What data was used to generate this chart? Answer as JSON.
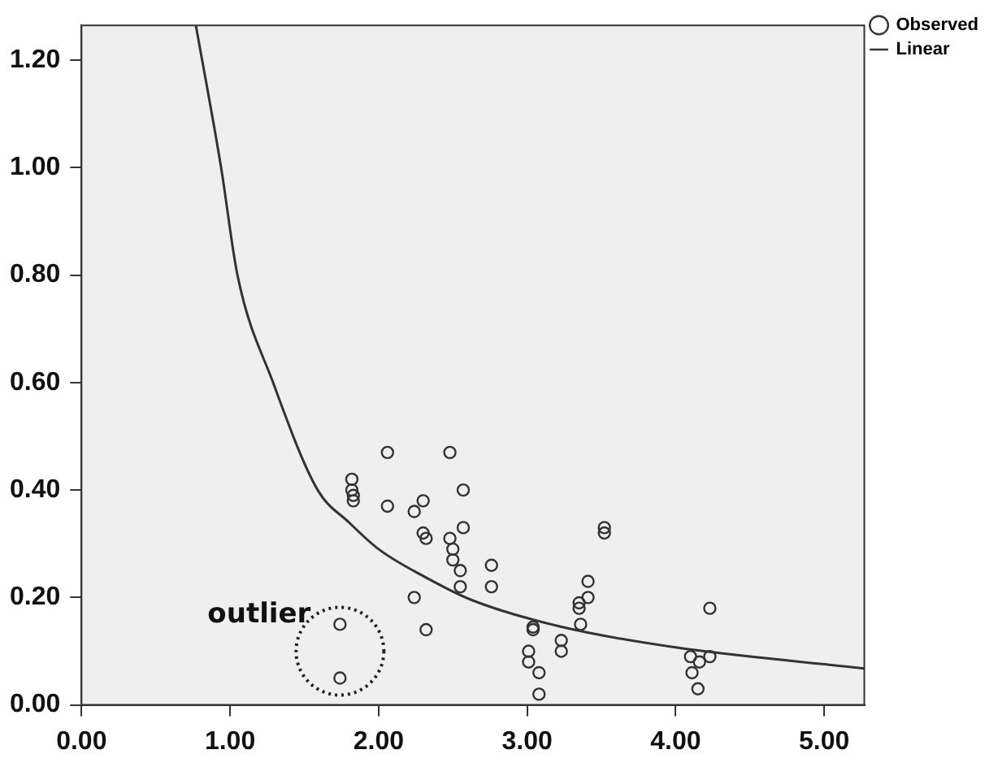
{
  "chart_data": {
    "type": "scatter",
    "xlim": [
      0,
      5.27
    ],
    "xticks": [
      {
        "value": 0,
        "label": "0.00"
      },
      {
        "value": 1,
        "label": "1.00"
      },
      {
        "value": 2,
        "label": "2.00"
      },
      {
        "value": 3,
        "label": "3.00"
      },
      {
        "value": 4,
        "label": "4.00"
      },
      {
        "value": 5,
        "label": "5.00"
      }
    ],
    "ylim": [
      0,
      1.265
    ],
    "yticks": [
      {
        "value": 0,
        "label": "0.00"
      },
      {
        "value": 0.2,
        "label": "0.20"
      },
      {
        "value": 0.4,
        "label": "0.40"
      },
      {
        "value": 0.6,
        "label": "0.60"
      },
      {
        "value": 0.8,
        "label": "0.80"
      },
      {
        "value": 1,
        "label": "1.00"
      },
      {
        "value": 1.2,
        "label": "1.20"
      }
    ],
    "grid": false,
    "legend": "top right",
    "annotations": [
      "outlier"
    ],
    "series": [
      {
        "name": "Observed",
        "marker": "circle",
        "color": "#333333",
        "x": [
          2.06,
          2.48,
          1.82,
          1.82,
          1.83,
          1.83,
          2.57,
          2.06,
          2.3,
          2.24,
          2.3,
          2.32,
          2.57,
          2.48,
          2.5,
          2.5,
          2.55,
          2.55,
          2.76,
          2.76,
          2.24,
          2.32,
          1.74,
          1.74,
          3.04,
          3.04,
          3.01,
          3.01,
          3.08,
          3.08,
          3.23,
          3.23,
          3.35,
          3.35,
          3.36,
          3.41,
          3.41,
          3.52,
          3.52,
          4.23,
          4.1,
          4.16,
          4.23,
          4.11,
          4.15
        ],
        "values": [
          0.47,
          0.47,
          0.42,
          0.4,
          0.39,
          0.38,
          0.4,
          0.37,
          0.38,
          0.36,
          0.32,
          0.31,
          0.33,
          0.31,
          0.29,
          0.27,
          0.25,
          0.22,
          0.26,
          0.22,
          0.2,
          0.14,
          0.15,
          0.05,
          0.14,
          0.145,
          0.1,
          0.08,
          0.06,
          0.02,
          0.12,
          0.1,
          0.19,
          0.18,
          0.15,
          0.23,
          0.2,
          0.33,
          0.32,
          0.18,
          0.09,
          0.08,
          0.09,
          0.06,
          0.03
        ]
      },
      {
        "name": "Linear",
        "type": "line",
        "marker": "none",
        "line_style": "solid",
        "color": "#333333",
        "x": [
          0.77,
          0.94,
          1.05,
          1.29,
          1.59,
          1.8,
          2.0,
          2.3,
          2.62,
          3.22,
          4.0,
          5.27
        ],
        "values": [
          1.265,
          1.0,
          0.8,
          0.6,
          0.4,
          0.34,
          0.29,
          0.24,
          0.196,
          0.146,
          0.107,
          0.068
        ]
      }
    ]
  }
}
